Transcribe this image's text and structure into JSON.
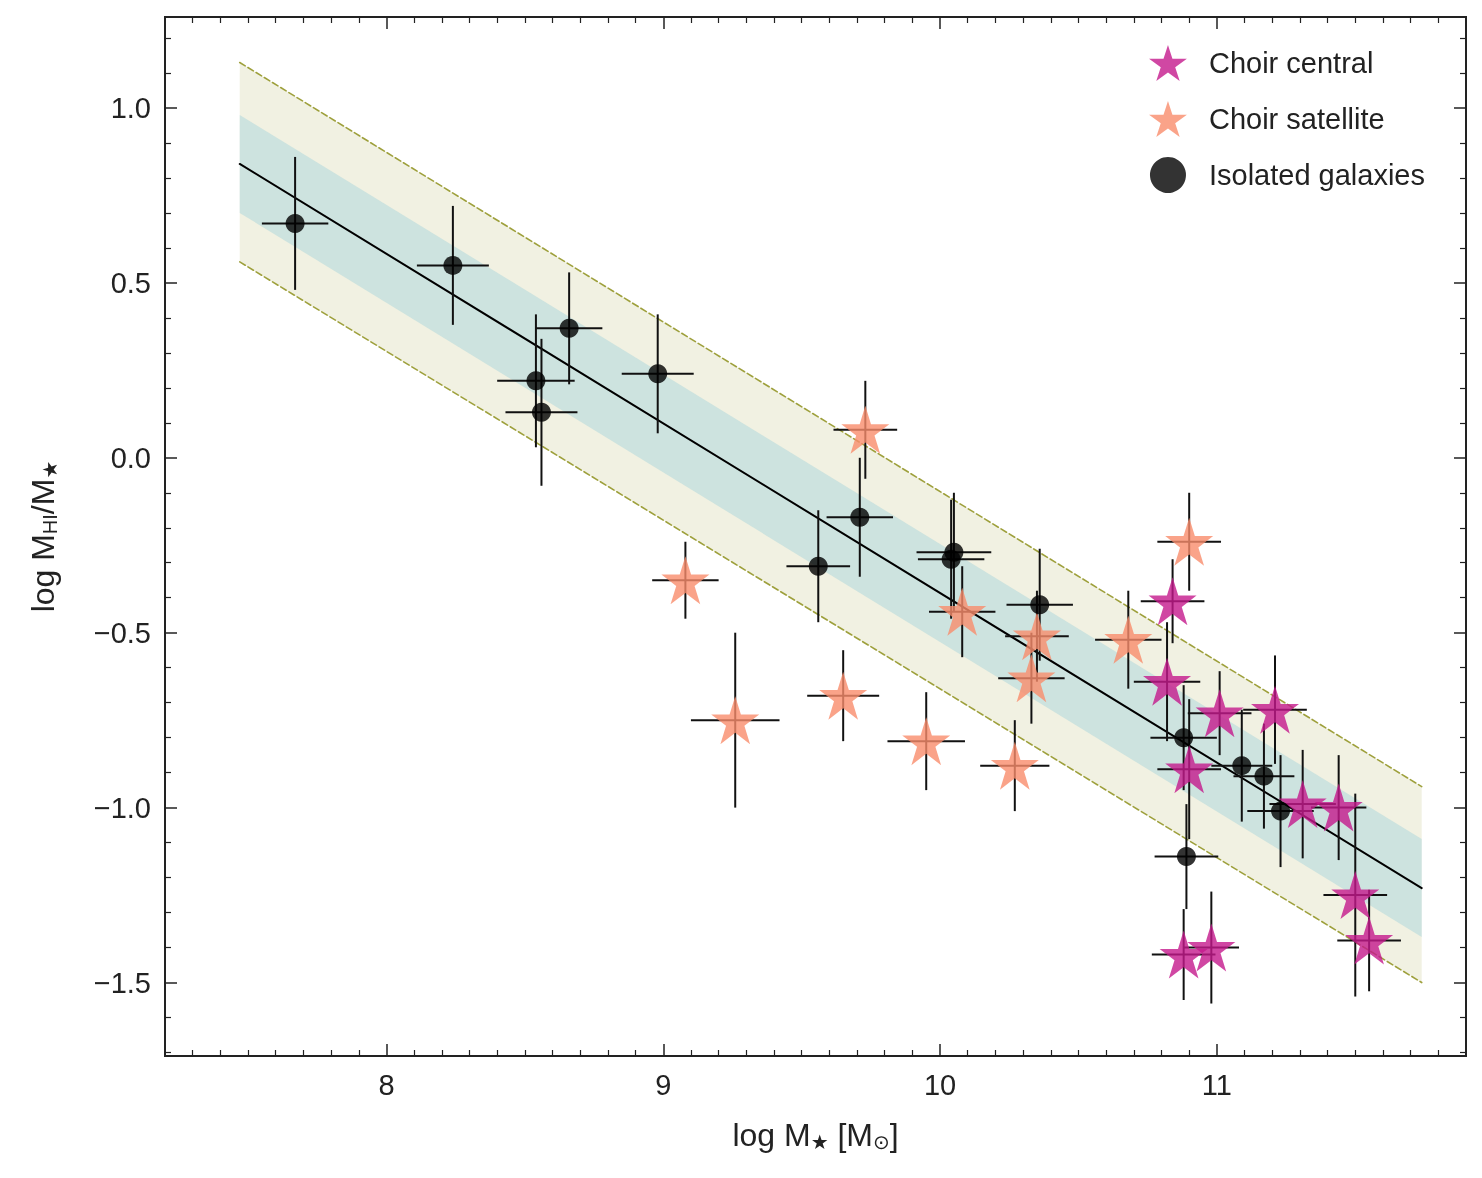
{
  "chart_data": {
    "type": "scatter",
    "xlabel": "log M$_{★}$ [M$_{⊙}$]",
    "ylabel": "log M$_{HI}$/M$_{★}$",
    "xlim": [
      7.2,
      11.9
    ],
    "ylim": [
      -1.71,
      1.26
    ],
    "xticks": [
      {
        "value": 7.3,
        "label": null
      },
      {
        "value": 7.4,
        "label": null
      },
      {
        "value": 7.5,
        "label": null
      },
      {
        "value": 7.6,
        "label": null
      },
      {
        "value": 7.7,
        "label": null
      },
      {
        "value": 7.8,
        "label": null
      },
      {
        "value": 7.9,
        "label": null
      },
      8,
      {
        "value": 8.1,
        "label": null
      },
      {
        "value": 8.2,
        "label": null
      },
      {
        "value": 8.3,
        "label": null
      },
      {
        "value": 8.4,
        "label": null
      },
      {
        "value": 8.5,
        "label": null
      },
      {
        "value": 8.6,
        "label": null
      },
      {
        "value": 8.7,
        "label": null
      },
      {
        "value": 8.8,
        "label": null
      },
      {
        "value": 8.9,
        "label": null
      },
      9,
      {
        "value": 9.1,
        "label": null
      },
      {
        "value": 9.2,
        "label": null
      },
      {
        "value": 9.3,
        "label": null
      },
      {
        "value": 9.4,
        "label": null
      },
      {
        "value": 9.5,
        "label": null
      },
      {
        "value": 9.6,
        "label": null
      },
      {
        "value": 9.7,
        "label": null
      },
      {
        "value": 9.8,
        "label": null
      },
      {
        "value": 9.9,
        "label": null
      },
      10,
      {
        "value": 10.1,
        "label": null
      },
      {
        "value": 10.2,
        "label": null
      },
      {
        "value": 10.3,
        "label": null
      },
      {
        "value": 10.4,
        "label": null
      },
      {
        "value": 10.5,
        "label": null
      },
      {
        "value": 10.6,
        "label": null
      },
      {
        "value": 10.7,
        "label": null
      },
      {
        "value": 10.8,
        "label": null
      },
      {
        "value": 10.9,
        "label": null
      },
      11,
      {
        "value": 11.1,
        "label": null
      },
      {
        "value": 11.2,
        "label": null
      },
      {
        "value": 11.3,
        "label": null
      },
      {
        "value": 11.4,
        "label": null
      },
      {
        "value": 11.5,
        "label": null
      },
      {
        "value": 11.6,
        "label": null
      },
      {
        "value": 11.7,
        "label": null
      },
      {
        "value": 11.8,
        "label": null
      }
    ],
    "yticks": [
      {
        "value": -1.7,
        "label": null
      },
      {
        "value": -1.6,
        "label": null
      },
      {
        "value": -1.5,
        "label": "−1.5"
      },
      {
        "value": -1.4,
        "label": null
      },
      {
        "value": -1.3,
        "label": null
      },
      {
        "value": -1.2,
        "label": null
      },
      {
        "value": -1.1,
        "label": null
      },
      {
        "value": -1,
        "label": "−1.0"
      },
      {
        "value": -0.9,
        "label": null
      },
      {
        "value": -0.8,
        "label": null
      },
      {
        "value": -0.7,
        "label": null
      },
      {
        "value": -0.6,
        "label": null
      },
      {
        "value": -0.5,
        "label": "−0.5"
      },
      {
        "value": -0.4,
        "label": null
      },
      {
        "value": -0.3,
        "label": null
      },
      {
        "value": -0.2,
        "label": null
      },
      {
        "value": -0.1,
        "label": null
      },
      {
        "value": 0,
        "label": "0.0"
      },
      {
        "value": 0.1,
        "label": null
      },
      {
        "value": 0.2,
        "label": null
      },
      {
        "value": 0.3,
        "label": null
      },
      {
        "value": 0.4,
        "label": null
      },
      0.5,
      {
        "value": 0.6,
        "label": null
      },
      {
        "value": 0.7,
        "label": null
      },
      {
        "value": 0.8,
        "label": null
      },
      {
        "value": 0.9,
        "label": null
      },
      {
        "value": 1,
        "label": "1.0"
      },
      {
        "value": 1.1,
        "label": null
      },
      {
        "value": 1.2,
        "label": null
      }
    ],
    "legend": "top right",
    "series": [
      {
        "type": "line",
        "color": "#9ea03c",
        "line_style": "dashed",
        "marker": "none",
        "x": [
          7.47,
          11.74
        ],
        "values": [
          1.13,
          -0.94
        ],
        "lower": [
          0.56,
          -1.5
        ],
        "upper": [
          1.13,
          -0.94
        ]
      },
      {
        "type": "line",
        "color": "#9ea03c",
        "line_style": "dashed",
        "marker": "none",
        "x": [
          7.47,
          11.74
        ],
        "values": [
          0.56,
          -1.5
        ]
      },
      {
        "type": "line",
        "color": "#000000",
        "line_style": "solid",
        "marker": "none",
        "x": [
          7.47,
          11.74
        ],
        "values": [
          0.84,
          -1.23
        ],
        "lower": [
          0.7,
          -1.37
        ],
        "upper": [
          0.98,
          -1.09
        ]
      },
      {
        "name": "Choir central",
        "color": "#c4198c",
        "marker": "star",
        "x": [
          10.84,
          10.82,
          11.01,
          11.21,
          10.9,
          11.31,
          11.44,
          11.5,
          11.55,
          10.88,
          10.98
        ],
        "values": [
          -0.41,
          -0.64,
          -0.73,
          -0.72,
          -0.89,
          -0.99,
          -1.0,
          -1.25,
          -1.38,
          -1.42,
          -1.4
        ],
        "errors": [
          0.12,
          0.17,
          0.12,
          0.155,
          0.2,
          0.155,
          0.15,
          0.29,
          0.145,
          0.13,
          0.16
        ],
        "xerrors": [
          0.115,
          0.12,
          0.115,
          0.115,
          0.115,
          0.12,
          0.1,
          0.115,
          0.115,
          0.115,
          0.1
        ]
      },
      {
        "name": "Choir satellite",
        "color": "#f98c6b",
        "marker": "star",
        "x": [
          9.73,
          9.08,
          9.26,
          9.65,
          9.95,
          10.27,
          10.08,
          10.35,
          10.33,
          10.68,
          10.9
        ],
        "values": [
          0.08,
          -0.35,
          -0.75,
          -0.68,
          -0.81,
          -0.88,
          -0.44,
          -0.51,
          -0.63,
          -0.52,
          -0.24
        ],
        "errors": [
          0.14,
          0.11,
          0.25,
          0.13,
          0.14,
          0.13,
          0.13,
          0.13,
          0.13,
          0.14,
          0.14
        ],
        "xerrors": [
          0.115,
          0.12,
          0.16,
          0.13,
          0.14,
          0.125,
          0.12,
          0.115,
          0.12,
          0.12,
          0.115
        ]
      },
      {
        "name": "Isolated galaxies",
        "color": "#000000",
        "marker": "circle",
        "x": [
          7.67,
          8.24,
          8.54,
          8.56,
          8.66,
          8.98,
          9.56,
          9.71,
          10.05,
          10.04,
          10.36,
          10.88,
          11.09,
          11.17,
          11.23,
          10.89
        ],
        "values": [
          0.67,
          0.55,
          0.22,
          0.13,
          0.37,
          0.24,
          -0.31,
          -0.17,
          -0.27,
          -0.29,
          -0.42,
          -0.8,
          -0.88,
          -0.91,
          -1.01,
          -1.14
        ],
        "errors": [
          0.19,
          0.17,
          0.19,
          0.21,
          0.16,
          0.17,
          0.16,
          0.17,
          0.17,
          0.17,
          0.16,
          0.15,
          0.16,
          0.15,
          0.16,
          0.15
        ],
        "xerrors": [
          0.12,
          0.13,
          0.14,
          0.13,
          0.12,
          0.13,
          0.115,
          0.12,
          0.135,
          0.12,
          0.12,
          0.12,
          0.11,
          0.11,
          0.12,
          0.115
        ]
      }
    ]
  }
}
